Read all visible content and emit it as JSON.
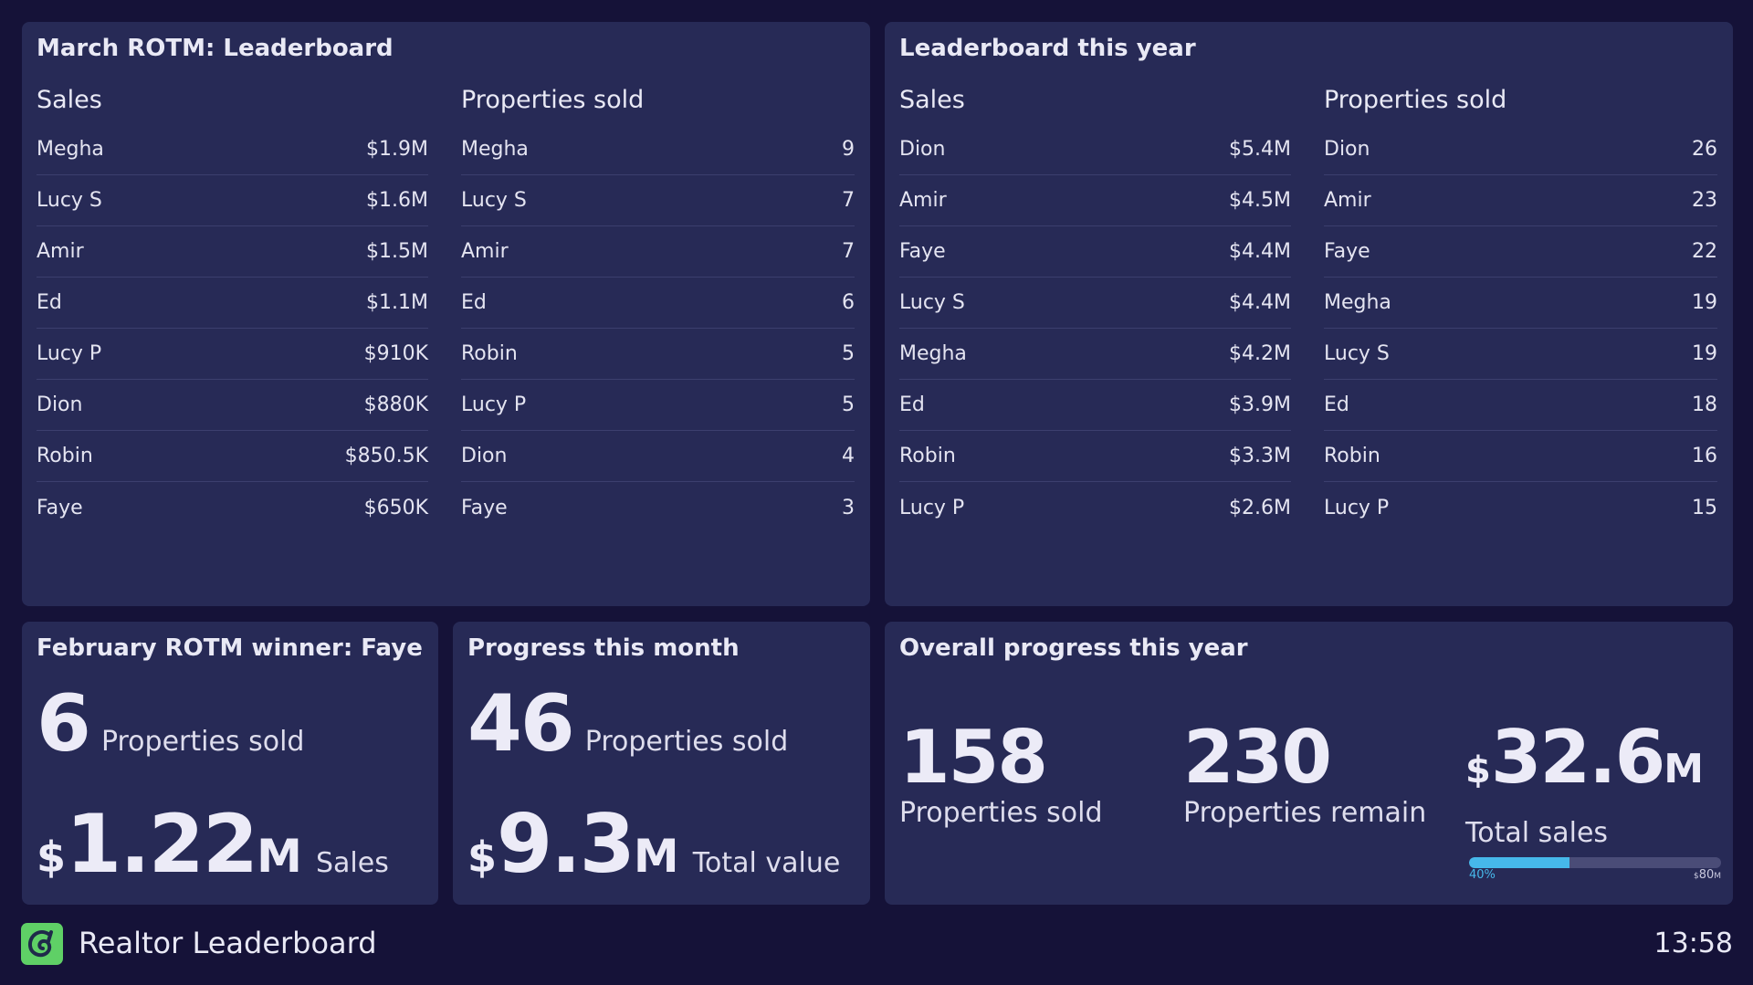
{
  "march": {
    "title": "March ROTM: Leaderboard",
    "sales": {
      "header": "Sales",
      "rows": [
        {
          "name": "Megha",
          "value": "$1.9M"
        },
        {
          "name": "Lucy S",
          "value": "$1.6M"
        },
        {
          "name": "Amir",
          "value": "$1.5M"
        },
        {
          "name": "Ed",
          "value": "$1.1M"
        },
        {
          "name": "Lucy P",
          "value": "$910K"
        },
        {
          "name": "Dion",
          "value": "$880K"
        },
        {
          "name": "Robin",
          "value": "$850.5K"
        },
        {
          "name": "Faye",
          "value": "$650K"
        }
      ]
    },
    "properties": {
      "header": "Properties sold",
      "rows": [
        {
          "name": "Megha",
          "value": "9"
        },
        {
          "name": "Lucy S",
          "value": "7"
        },
        {
          "name": "Amir",
          "value": "7"
        },
        {
          "name": "Ed",
          "value": "6"
        },
        {
          "name": "Robin",
          "value": "5"
        },
        {
          "name": "Lucy P",
          "value": "5"
        },
        {
          "name": "Dion",
          "value": "4"
        },
        {
          "name": "Faye",
          "value": "3"
        }
      ]
    }
  },
  "year": {
    "title": "Leaderboard this year",
    "sales": {
      "header": "Sales",
      "rows": [
        {
          "name": "Dion",
          "value": "$5.4M"
        },
        {
          "name": "Amir",
          "value": "$4.5M"
        },
        {
          "name": "Faye",
          "value": "$4.4M"
        },
        {
          "name": "Lucy S",
          "value": "$4.4M"
        },
        {
          "name": "Megha",
          "value": "$4.2M"
        },
        {
          "name": "Ed",
          "value": "$3.9M"
        },
        {
          "name": "Robin",
          "value": "$3.3M"
        },
        {
          "name": "Lucy P",
          "value": "$2.6M"
        }
      ]
    },
    "properties": {
      "header": "Properties sold",
      "rows": [
        {
          "name": "Dion",
          "value": "26"
        },
        {
          "name": "Amir",
          "value": "23"
        },
        {
          "name": "Faye",
          "value": "22"
        },
        {
          "name": "Megha",
          "value": "19"
        },
        {
          "name": "Lucy S",
          "value": "19"
        },
        {
          "name": "Ed",
          "value": "18"
        },
        {
          "name": "Robin",
          "value": "16"
        },
        {
          "name": "Lucy P",
          "value": "15"
        }
      ]
    }
  },
  "february": {
    "title": "February ROTM winner: Faye",
    "properties_value": "6",
    "properties_label": "Properties sold",
    "currency": "$",
    "sales_value": "1.22",
    "sales_unit": "M",
    "sales_label": "Sales"
  },
  "month": {
    "title": "Progress this month",
    "properties_value": "46",
    "properties_label": "Properties sold",
    "currency": "$",
    "total_value": "9.3",
    "total_unit": "M",
    "total_label": "Total value"
  },
  "overall": {
    "title": "Overall progress this year",
    "sold_value": "158",
    "sold_label": "Properties sold",
    "remain_value": "230",
    "remain_label": "Properties remain",
    "currency": "$",
    "sales_value": "32.6",
    "sales_unit": "M",
    "sales_label": "Total sales",
    "progress_percent": 40,
    "progress_label": "40%",
    "goal_currency": "$",
    "goal_value": "80",
    "goal_unit": "M"
  },
  "footer": {
    "app_name": "Realtor Leaderboard",
    "time": "13:58"
  },
  "colors": {
    "background": "#151238",
    "panel": "#272a56",
    "progress_fill": "#46b8ea",
    "logo": "#5fd066"
  },
  "icons": {
    "logo": "swirl-logo-icon"
  }
}
